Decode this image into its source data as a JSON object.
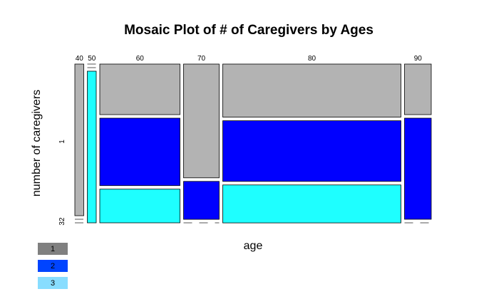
{
  "chart_data": {
    "type": "mosaic",
    "title": "Mosaic Plot of # of Caregivers by Ages",
    "xlabel": "age",
    "ylabel": "number of caregivers",
    "categories": [
      "40",
      "50",
      "60",
      "70",
      "80",
      "90"
    ],
    "category_totals": [
      1,
      1,
      9,
      4,
      20,
      3
    ],
    "y_tick_labels": [
      "1",
      "32"
    ],
    "series": [
      {
        "name": "1",
        "color": "#b3b3b3",
        "values": [
          1,
          0,
          3,
          3,
          7,
          1
        ]
      },
      {
        "name": "2",
        "color": "#0000ff",
        "values": [
          0,
          0,
          4,
          1,
          8,
          2
        ]
      },
      {
        "name": "3",
        "color": "#1effff",
        "values": [
          0,
          1,
          2,
          0,
          5,
          0
        ]
      }
    ],
    "legend_placement": "bottom-left",
    "legend_colors": [
      "#808080",
      "#0044ff",
      "#88ddff"
    ],
    "grid": false
  }
}
